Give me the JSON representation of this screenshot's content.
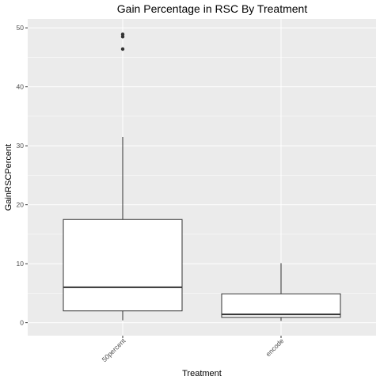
{
  "chart_data": {
    "type": "box",
    "title": "Gain Percentage in RSC By Treatment",
    "xlabel": "Treatment",
    "ylabel": "GainRSCPercent",
    "categories": [
      "50percent",
      "encode"
    ],
    "ylim": [
      -2.2,
      51.5
    ],
    "y_ticks": [
      0,
      10,
      20,
      30,
      40,
      50
    ],
    "boxes": [
      {
        "category": "50percent",
        "lower_whisker": 0.4,
        "q1": 2.0,
        "median": 6.0,
        "q3": 17.5,
        "upper_whisker": 31.5,
        "outliers": [
          46.4,
          48.5,
          48.9
        ]
      },
      {
        "category": "encode",
        "lower_whisker": 0.3,
        "q1": 0.9,
        "median": 1.4,
        "q3": 4.9,
        "upper_whisker": 10.1,
        "outliers": []
      }
    ],
    "grid": true,
    "colors": {
      "panel": "#ebebeb",
      "grid": "#ffffff",
      "box_fill": "#ffffff",
      "box_line": "#333333",
      "outlier": "#333333"
    }
  }
}
